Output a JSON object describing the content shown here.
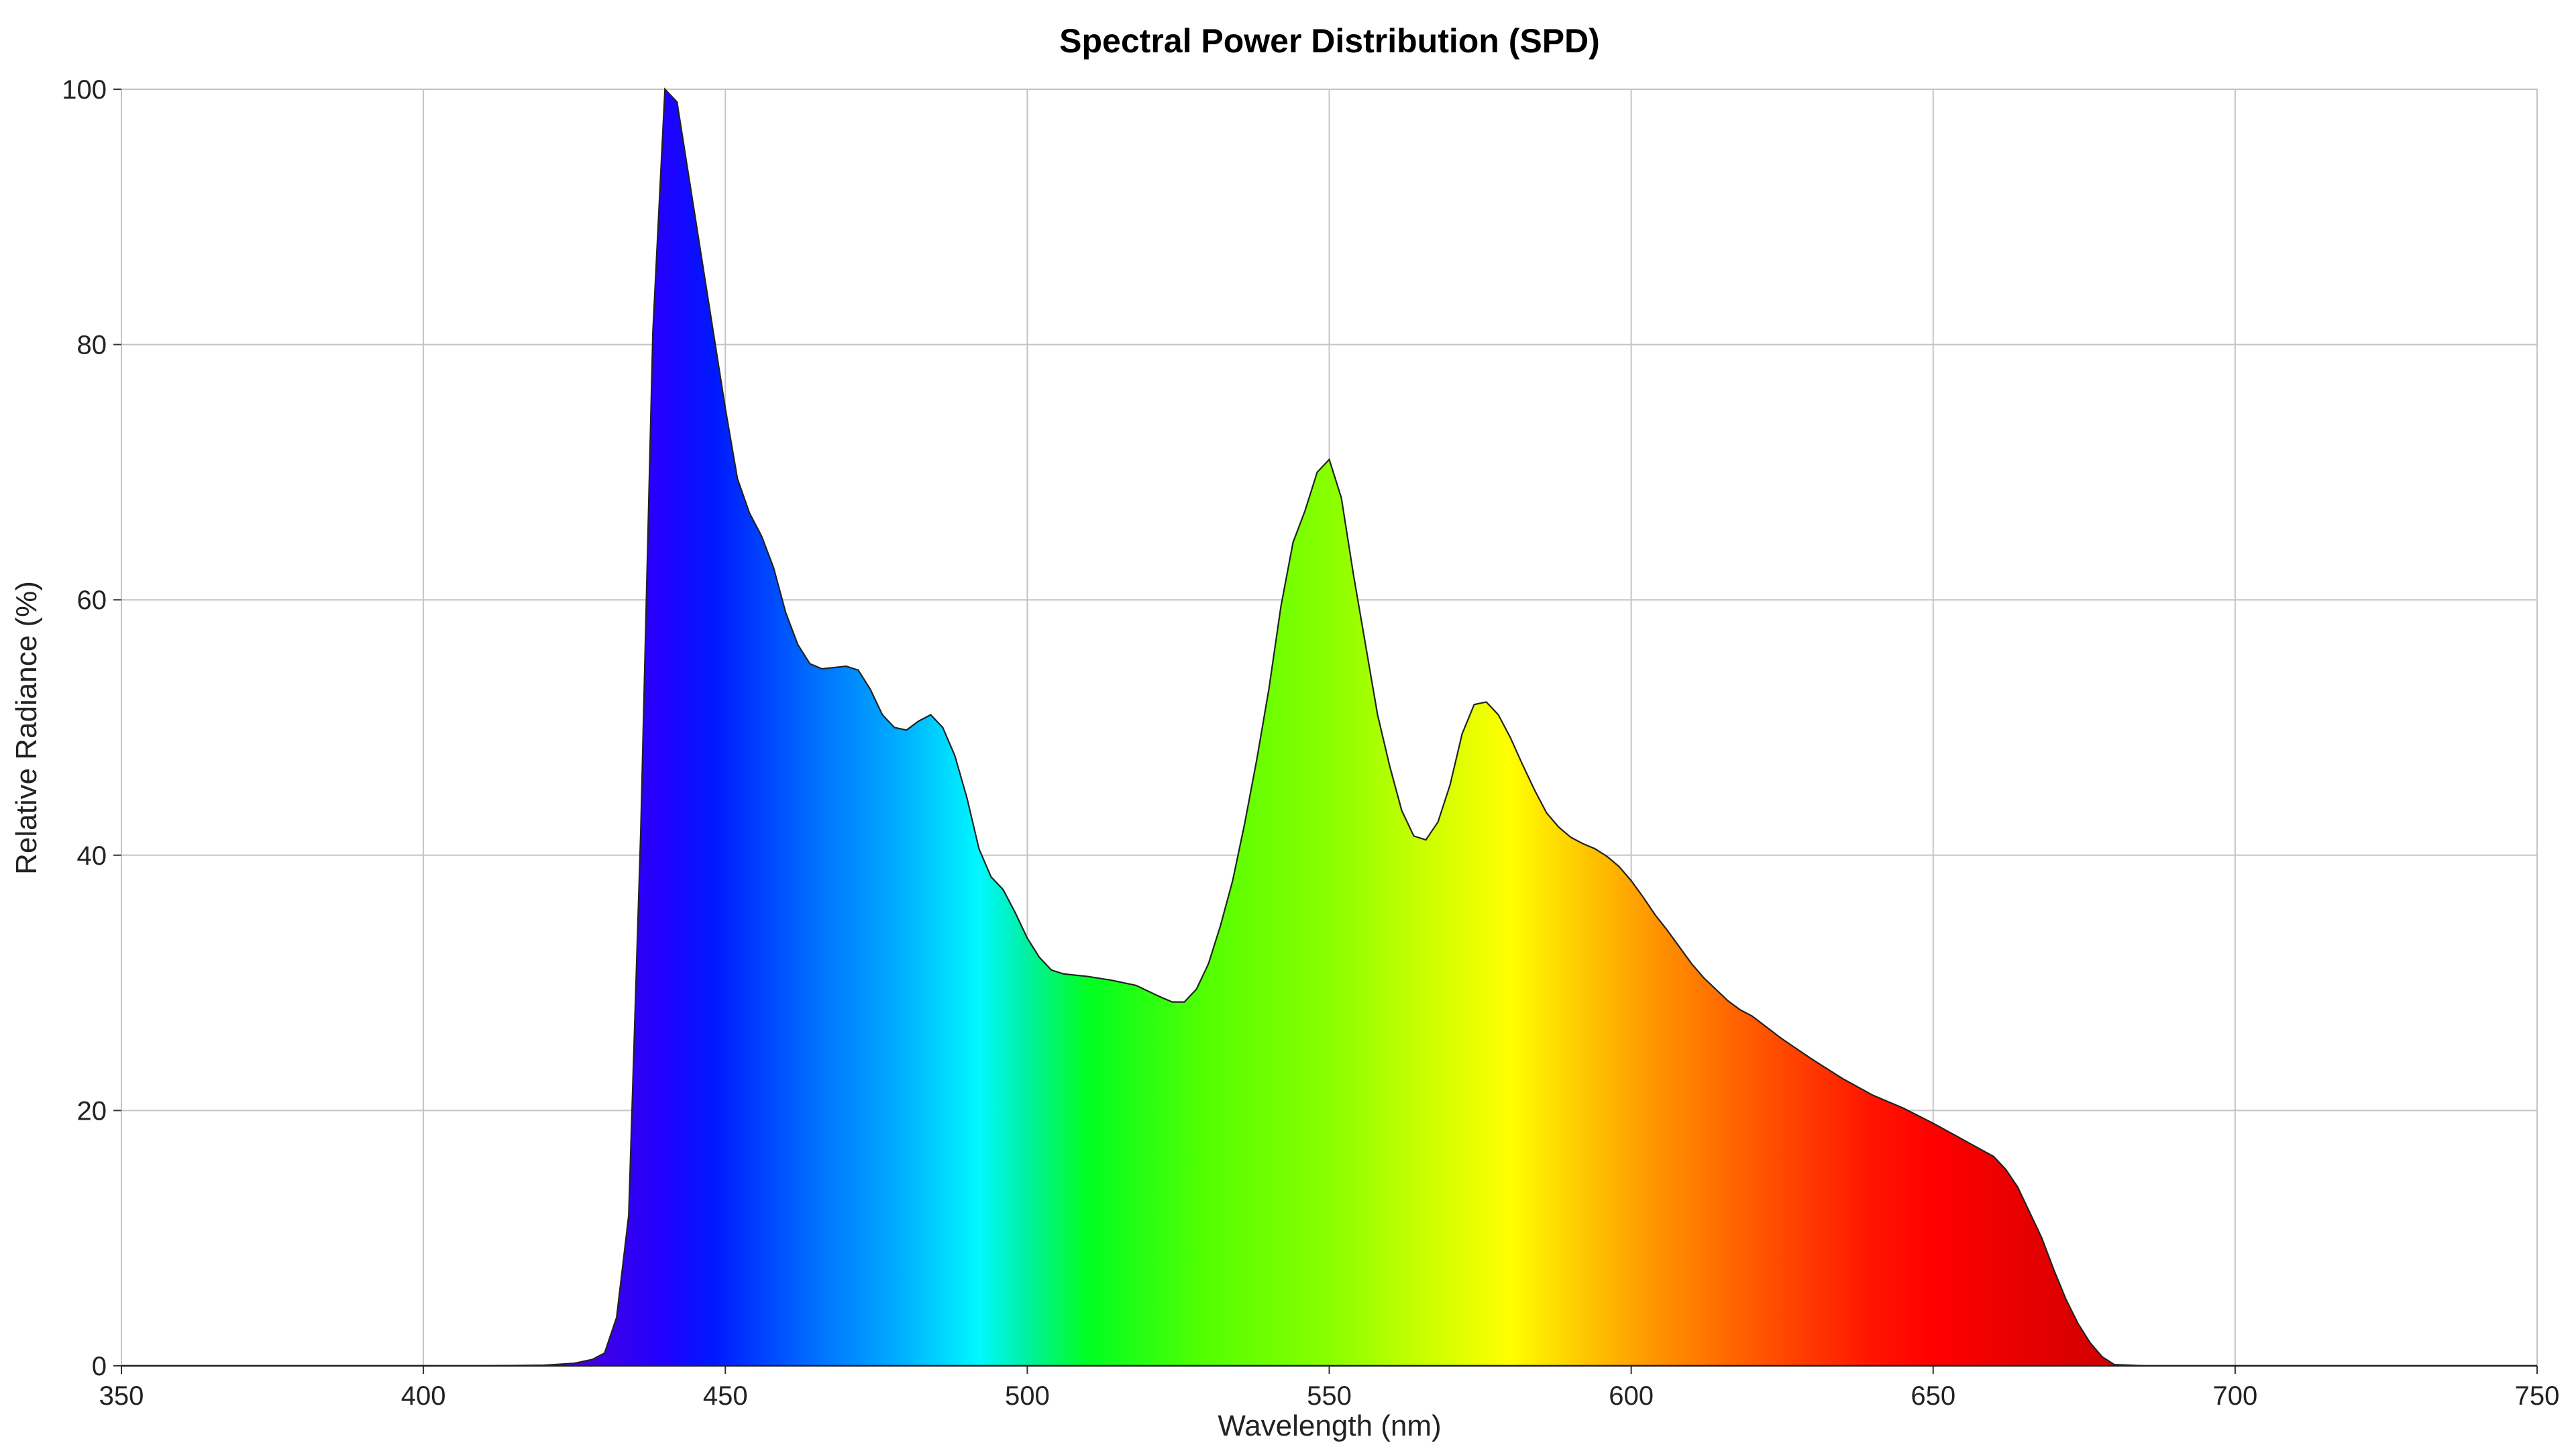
{
  "chart_data": {
    "type": "area",
    "title": "Spectral Power Distribution (SPD)",
    "xlabel": "Wavelength (nm)",
    "ylabel": "Relative Radiance (%)",
    "xlim": [
      350,
      750
    ],
    "ylim": [
      0,
      100
    ],
    "xticks": [
      350,
      400,
      450,
      500,
      550,
      600,
      650,
      700,
      750
    ],
    "yticks": [
      0,
      20,
      40,
      60,
      80,
      100
    ],
    "grid": true,
    "legend": "none",
    "fill": "visible-spectrum gradient",
    "series": [
      {
        "x": [
          350,
          410,
          420,
          425,
          428,
          430,
          432,
          434,
          436,
          438,
          440,
          442,
          444,
          446,
          448,
          450,
          452,
          454,
          456,
          458,
          460,
          462,
          464,
          466,
          468,
          470,
          472,
          474,
          476,
          478,
          480,
          482,
          484,
          486,
          488,
          490,
          492,
          494,
          496,
          498,
          500,
          502,
          504,
          506,
          508,
          510,
          514,
          518,
          522,
          524,
          526,
          528,
          530,
          532,
          534,
          536,
          538,
          540,
          542,
          544,
          546,
          548,
          550,
          552,
          554,
          556,
          558,
          560,
          562,
          564,
          566,
          568,
          570,
          572,
          574,
          576,
          578,
          580,
          582,
          584,
          586,
          588,
          590,
          592,
          594,
          596,
          598,
          600,
          602,
          604,
          606,
          608,
          610,
          612,
          614,
          616,
          618,
          620,
          625,
          630,
          635,
          640,
          645,
          650,
          655,
          660,
          662,
          664,
          666,
          668,
          670,
          672,
          674,
          676,
          678,
          680,
          685,
          700,
          750
        ],
        "y": [
          0,
          0,
          0.05,
          0.2,
          0.5,
          1.0,
          3.8,
          11.8,
          42.0,
          81.0,
          100.0,
          99.0,
          93.0,
          87.0,
          81.0,
          75.0,
          69.5,
          66.8,
          65.0,
          62.5,
          59.0,
          56.5,
          55.0,
          54.6,
          54.7,
          54.8,
          54.5,
          53.0,
          51.0,
          50.0,
          49.8,
          50.5,
          51.0,
          50.0,
          47.8,
          44.5,
          40.5,
          38.3,
          37.3,
          35.5,
          33.5,
          32.0,
          31.0,
          30.7,
          30.6,
          30.5,
          30.2,
          29.8,
          28.9,
          28.5,
          28.5,
          29.5,
          31.5,
          34.5,
          38.0,
          42.5,
          47.5,
          53.0,
          59.5,
          64.5,
          67.0,
          70.0,
          71.0,
          68.0,
          62.0,
          56.5,
          51.0,
          47.0,
          43.5,
          41.5,
          41.2,
          42.6,
          45.5,
          49.5,
          51.8,
          52.0,
          51.0,
          49.2,
          47.1,
          45.1,
          43.3,
          42.2,
          41.4,
          40.9,
          40.5,
          39.9,
          39.1,
          38.0,
          36.7,
          35.3,
          34.1,
          32.8,
          31.5,
          30.4,
          29.5,
          28.6,
          27.9,
          27.4,
          25.6,
          24.0,
          22.5,
          21.2,
          20.2,
          19.0,
          17.7,
          16.4,
          15.4,
          14.0,
          12.0,
          10.0,
          7.5,
          5.2,
          3.3,
          1.8,
          0.7,
          0.1,
          0,
          0,
          0
        ]
      }
    ]
  }
}
